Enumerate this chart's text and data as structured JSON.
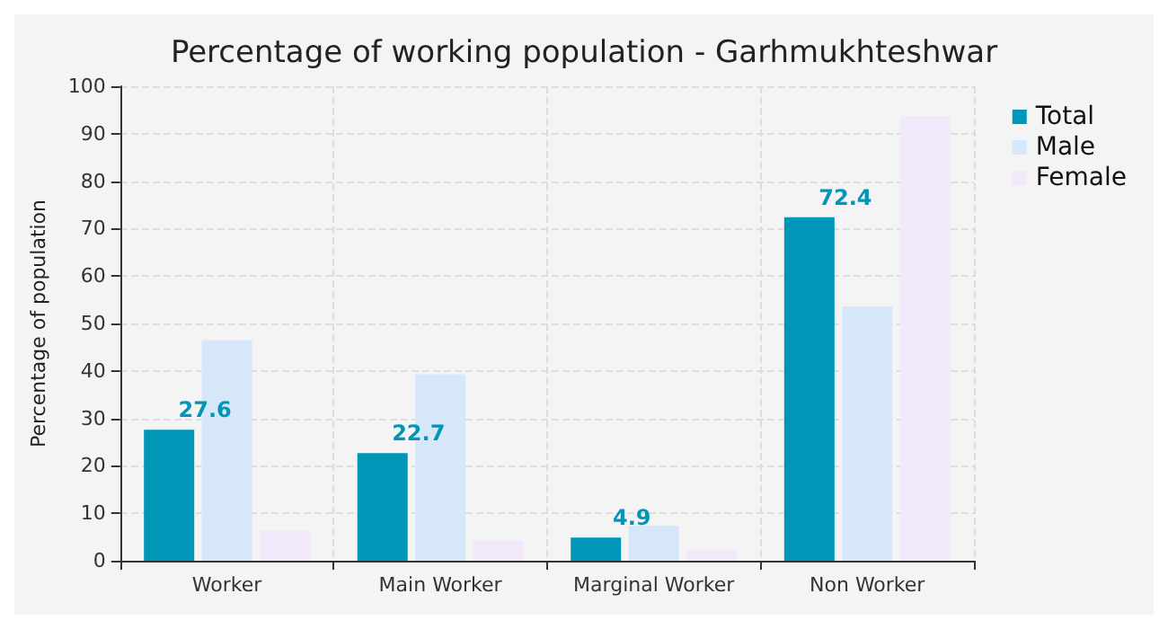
{
  "chart_data": {
    "type": "bar",
    "title": "Percentage of working population - Garhmukhteshwar",
    "ylabel": "Percentage of population",
    "categories": [
      "Worker",
      "Main Worker",
      "Marginal Worker",
      "Non Worker"
    ],
    "series": [
      {
        "name": "Total",
        "color": "#0096b8",
        "values": [
          27.6,
          22.7,
          4.9,
          72.4
        ],
        "value_labels": [
          "27.6",
          "22.7",
          "4.9",
          "72.4"
        ]
      },
      {
        "name": "Male",
        "color": "#d6e7fa",
        "values": [
          46.5,
          39.3,
          7.4,
          53.6
        ]
      },
      {
        "name": "Female",
        "color": "#f1e8fb",
        "values": [
          6.3,
          4.2,
          2.2,
          93.7
        ]
      }
    ],
    "ylim": [
      0,
      100
    ],
    "yticks": [
      0,
      10,
      20,
      30,
      40,
      50,
      60,
      70,
      80,
      90,
      100
    ],
    "grid": true,
    "legend": "top right"
  }
}
